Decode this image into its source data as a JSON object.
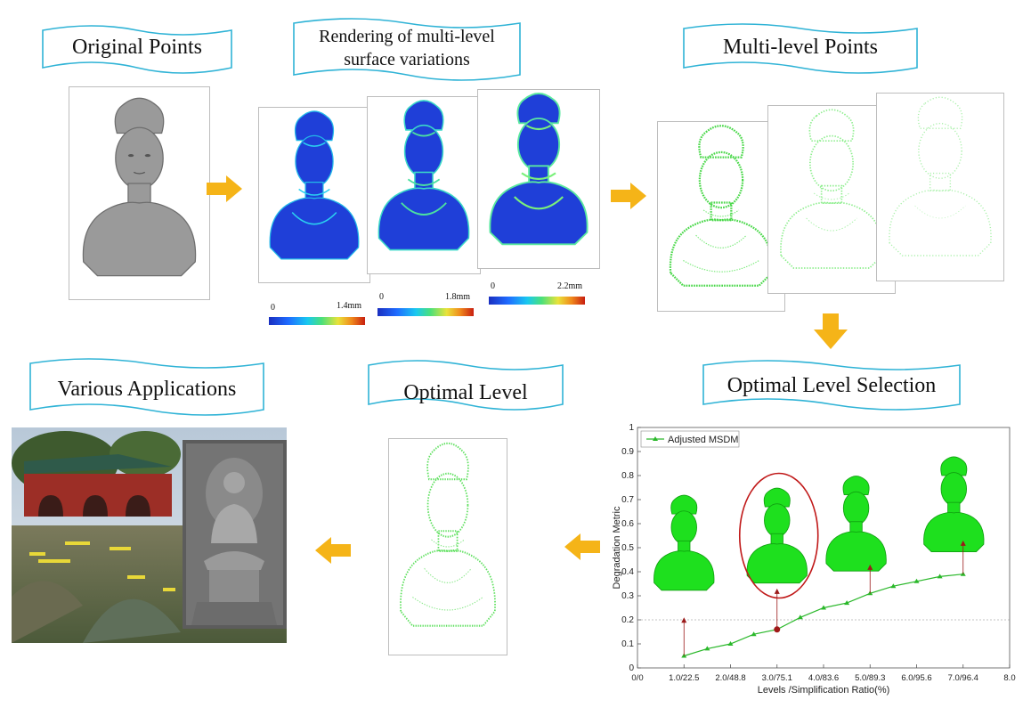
{
  "banners": {
    "original_points": "Original Points",
    "rendering_line1": "Rendering of multi-level",
    "rendering_line2": "surface variations",
    "multi_level_points": "Multi-level Points",
    "optimal_level_selection": "Optimal Level Selection",
    "optimal_level": "Optimal Level",
    "various_applications": "Various Applications"
  },
  "colorbars": [
    {
      "min": "0",
      "max": "1.4mm"
    },
    {
      "min": "0",
      "max": "1.8mm"
    },
    {
      "min": "0",
      "max": "2.2mm"
    }
  ],
  "colors": {
    "banner_stroke": "#2fb3d6",
    "arrow": "#f5b418",
    "gray_model": "#9a9a9a",
    "blue_model": "#1f3fd8",
    "green_points": "#6ee86e",
    "green_solid": "#1ee01e",
    "highlight_circle": "#c01818",
    "pointer_arrow": "#9b1a1a"
  },
  "chart_data": {
    "type": "line",
    "series": [
      {
        "name": "Adjusted MSDM",
        "x": [
          1,
          1.5,
          2,
          2.5,
          3,
          3.5,
          4,
          4.5,
          5,
          5.5,
          6,
          6.5,
          7
        ],
        "values": [
          0.05,
          0.08,
          0.1,
          0.14,
          0.16,
          0.21,
          0.25,
          0.27,
          0.31,
          0.34,
          0.36,
          0.38,
          0.39
        ]
      }
    ],
    "xlabel": "Levels /Simplification Ratio(%)",
    "ylabel": "Degradation Metric",
    "xlim": [
      0,
      8
    ],
    "ylim": [
      0,
      1
    ],
    "xticks": [
      "0/0",
      "1.0/22.5",
      "2.0/48.8",
      "3.0/75.1",
      "4.0/83.6",
      "5.0/89.3",
      "6.0/95.6",
      "7.0/96.4",
      "8.0"
    ],
    "yticks": [
      "0",
      "0.1",
      "0.2",
      "0.3",
      "0.4",
      "0.5",
      "0.6",
      "0.7",
      "0.8",
      "0.9",
      "1"
    ],
    "threshold": 0.2,
    "selected_point": {
      "x": 3,
      "y": 0.16
    },
    "legend": "top-left",
    "grid": false
  }
}
